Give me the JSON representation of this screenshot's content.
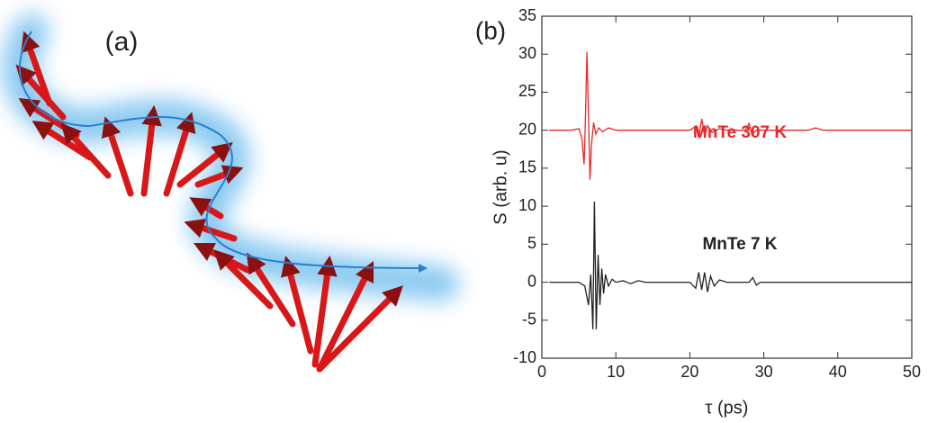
{
  "panels": [
    "(a)",
    "(b)"
  ],
  "chart_data": {
    "type": "line",
    "xlabel": "τ (ps)",
    "ylabel": "S (arb. u)",
    "xlim": [
      0,
      50
    ],
    "ylim": [
      -10,
      35
    ],
    "xticks": [
      0,
      10,
      20,
      30,
      40,
      50
    ],
    "yticks": [
      -10,
      -5,
      0,
      5,
      10,
      15,
      20,
      25,
      30,
      35
    ],
    "series": [
      {
        "name": "MnTe 307 K",
        "color": "#e8282a",
        "x": [
          1,
          4,
          5,
          5.4,
          5.7,
          5.9,
          6.1,
          6.3,
          6.5,
          6.7,
          7,
          7.3,
          7.7,
          8.2,
          9,
          10,
          20,
          20.8,
          21.2,
          21.6,
          22,
          22.4,
          23,
          24,
          25,
          27.5,
          28,
          28.4,
          29,
          36,
          37,
          38,
          50
        ],
        "values": [
          20,
          20,
          20.2,
          19,
          15.5,
          22,
          30.3,
          22,
          13.5,
          18,
          21,
          19.5,
          20.3,
          19.8,
          20.3,
          20,
          20,
          20.5,
          19,
          21.5,
          19.2,
          20.6,
          19.7,
          20.2,
          20,
          20,
          20.9,
          19.4,
          20,
          20,
          20.3,
          20,
          20
        ]
      },
      {
        "name": "MnTe 7 K",
        "color": "#222222",
        "x": [
          1,
          5,
          5.8,
          6.3,
          6.6,
          6.9,
          7.1,
          7.35,
          7.6,
          7.85,
          8.1,
          8.35,
          8.6,
          9,
          9.5,
          10,
          11,
          12,
          13,
          14,
          20,
          20.8,
          21.2,
          21.6,
          22,
          22.4,
          22.8,
          23.3,
          24,
          25,
          28,
          28.5,
          29,
          29.5,
          50
        ],
        "values": [
          0,
          0,
          -0.5,
          -3,
          1,
          -6.2,
          10.6,
          -6.2,
          3.6,
          -3,
          1.8,
          -1.5,
          1,
          -0.5,
          0.4,
          0,
          0.2,
          -0.2,
          0.2,
          0,
          0,
          -0.8,
          1.3,
          -1,
          1.3,
          -1.3,
          0.8,
          -0.5,
          0.3,
          0,
          0,
          0.6,
          -0.4,
          0,
          0
        ]
      }
    ]
  }
}
